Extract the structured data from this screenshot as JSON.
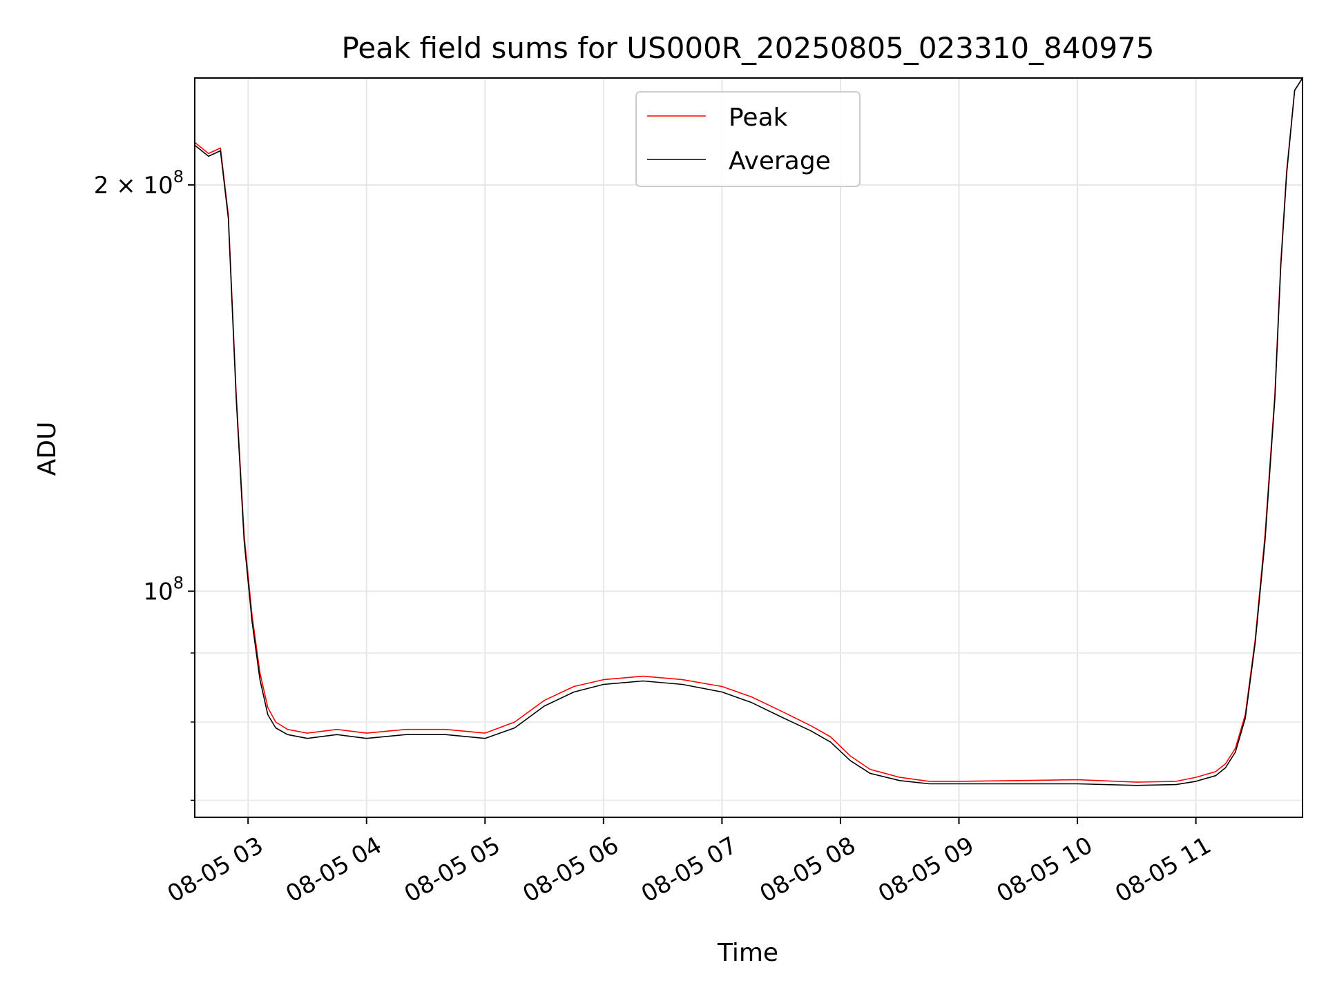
{
  "chart_data": {
    "type": "line",
    "title": "Peak field sums for US000R_20250805_023310_840975",
    "xlabel": "Time",
    "ylabel": "ADU",
    "yscale": "log",
    "grid": true,
    "legend_position": "upper center",
    "x_tick_labels": [
      "08-05 03",
      "08-05 04",
      "08-05 05",
      "08-05 06",
      "08-05 07",
      "08-05 08",
      "08-05 09",
      "08-05 10",
      "08-05 11"
    ],
    "y_tick_labels": [
      {
        "value": 200000000,
        "mantissa": "2 × 10",
        "exponent": "8"
      },
      {
        "value": 100000000,
        "mantissa": "10",
        "exponent": "8"
      }
    ],
    "xlim": [
      "2025-08-05 02:33",
      "2025-08-05 11:54"
    ],
    "ylim": [
      68000000,
      240000000
    ],
    "series": [
      {
        "name": "Peak",
        "color": "#ff0000",
        "x": [
          "2025-08-05 02:33",
          "2025-08-05 02:40",
          "2025-08-05 02:46",
          "2025-08-05 02:50",
          "2025-08-05 02:54",
          "2025-08-05 02:58",
          "2025-08-05 03:02",
          "2025-08-05 03:06",
          "2025-08-05 03:10",
          "2025-08-05 03:14",
          "2025-08-05 03:20",
          "2025-08-05 03:30",
          "2025-08-05 03:45",
          "2025-08-05 04:00",
          "2025-08-05 04:20",
          "2025-08-05 04:40",
          "2025-08-05 05:00",
          "2025-08-05 05:15",
          "2025-08-05 05:30",
          "2025-08-05 05:45",
          "2025-08-05 06:00",
          "2025-08-05 06:20",
          "2025-08-05 06:40",
          "2025-08-05 07:00",
          "2025-08-05 07:15",
          "2025-08-05 07:30",
          "2025-08-05 07:45",
          "2025-08-05 07:55",
          "2025-08-05 08:05",
          "2025-08-05 08:15",
          "2025-08-05 08:30",
          "2025-08-05 08:45",
          "2025-08-05 09:00",
          "2025-08-05 09:30",
          "2025-08-05 10:00",
          "2025-08-05 10:30",
          "2025-08-05 10:50",
          "2025-08-05 11:00",
          "2025-08-05 11:10",
          "2025-08-05 11:15",
          "2025-08-05 11:20",
          "2025-08-05 11:25",
          "2025-08-05 11:30",
          "2025-08-05 11:35",
          "2025-08-05 11:40",
          "2025-08-05 11:43",
          "2025-08-05 11:46",
          "2025-08-05 11:50",
          "2025-08-05 11:54"
        ],
        "y": [
          215000000,
          211000000,
          213000000,
          190000000,
          140000000,
          110000000,
          96000000,
          87000000,
          82000000,
          80000000,
          79000000,
          78500000,
          79000000,
          78500000,
          79000000,
          79000000,
          78500000,
          80000000,
          83000000,
          85000000,
          86000000,
          86500000,
          86000000,
          85000000,
          83500000,
          81500000,
          79500000,
          78000000,
          75500000,
          73800000,
          72800000,
          72300000,
          72300000,
          72400000,
          72500000,
          72200000,
          72300000,
          72800000,
          73500000,
          74500000,
          76500000,
          81000000,
          92000000,
          110000000,
          140000000,
          175000000,
          205000000,
          235000000,
          240000000
        ]
      },
      {
        "name": "Average",
        "color": "#000000",
        "x": [
          "2025-08-05 02:33",
          "2025-08-05 02:40",
          "2025-08-05 02:46",
          "2025-08-05 02:50",
          "2025-08-05 02:54",
          "2025-08-05 02:58",
          "2025-08-05 03:02",
          "2025-08-05 03:06",
          "2025-08-05 03:10",
          "2025-08-05 03:14",
          "2025-08-05 03:20",
          "2025-08-05 03:30",
          "2025-08-05 03:45",
          "2025-08-05 04:00",
          "2025-08-05 04:20",
          "2025-08-05 04:40",
          "2025-08-05 05:00",
          "2025-08-05 05:15",
          "2025-08-05 05:30",
          "2025-08-05 05:45",
          "2025-08-05 06:00",
          "2025-08-05 06:20",
          "2025-08-05 06:40",
          "2025-08-05 07:00",
          "2025-08-05 07:15",
          "2025-08-05 07:30",
          "2025-08-05 07:45",
          "2025-08-05 07:55",
          "2025-08-05 08:05",
          "2025-08-05 08:15",
          "2025-08-05 08:30",
          "2025-08-05 08:45",
          "2025-08-05 09:00",
          "2025-08-05 09:30",
          "2025-08-05 10:00",
          "2025-08-05 10:30",
          "2025-08-05 10:50",
          "2025-08-05 11:00",
          "2025-08-05 11:10",
          "2025-08-05 11:15",
          "2025-08-05 11:20",
          "2025-08-05 11:25",
          "2025-08-05 11:30",
          "2025-08-05 11:35",
          "2025-08-05 11:40",
          "2025-08-05 11:43",
          "2025-08-05 11:46",
          "2025-08-05 11:50",
          "2025-08-05 11:54"
        ],
        "y": [
          214000000,
          210000000,
          212000000,
          189000000,
          139000000,
          109000000,
          95000000,
          86000000,
          81000000,
          79200000,
          78300000,
          77800000,
          78300000,
          77800000,
          78300000,
          78300000,
          77800000,
          79200000,
          82200000,
          84200000,
          85300000,
          85800000,
          85300000,
          84200000,
          82700000,
          80700000,
          78800000,
          77300000,
          74900000,
          73300000,
          72400000,
          72000000,
          72000000,
          72000000,
          72000000,
          71800000,
          71900000,
          72300000,
          73000000,
          74000000,
          76000000,
          80500000,
          91500000,
          109000000,
          139000000,
          174000000,
          204000000,
          235000000,
          240000000
        ]
      }
    ]
  }
}
